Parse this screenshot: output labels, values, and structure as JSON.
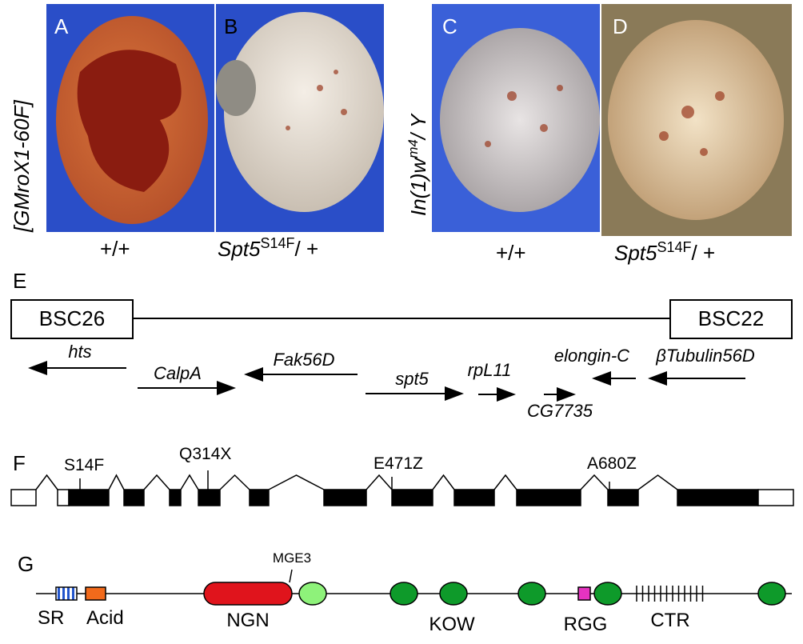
{
  "panels": {
    "top": {
      "letters": [
        "A",
        "B",
        "C",
        "D"
      ],
      "left_genotype": {
        "text": "[GMroX1-60F]"
      },
      "right_genotype": {
        "base": "In(1)w",
        "sup": "m4",
        "rest": "/ Y"
      },
      "wild": [
        "+/+",
        "+/+"
      ],
      "mutant": [
        {
          "gene": "Spt5",
          "sup": "S14F",
          "rest": "/ +"
        },
        {
          "gene": "Spt5",
          "sup": "S14F",
          "rest": "/ +"
        }
      ]
    },
    "E": {
      "letter": "E",
      "deficiencies": [
        "BSC26",
        "BSC22"
      ],
      "genes": [
        "hts",
        "CalpA",
        "Fak56D",
        "spt5",
        "rpL11",
        "CG7735",
        "elongin-C",
        "βTubulin56D"
      ]
    },
    "F": {
      "letter": "F",
      "mutations": [
        "S14F",
        "Q314X",
        "E471Z",
        "A680Z"
      ]
    },
    "G": {
      "letter": "G",
      "domains": [
        "SR",
        "Acid",
        "NGN",
        "MGE3",
        "KOW",
        "RGG",
        "CTR"
      ]
    }
  }
}
